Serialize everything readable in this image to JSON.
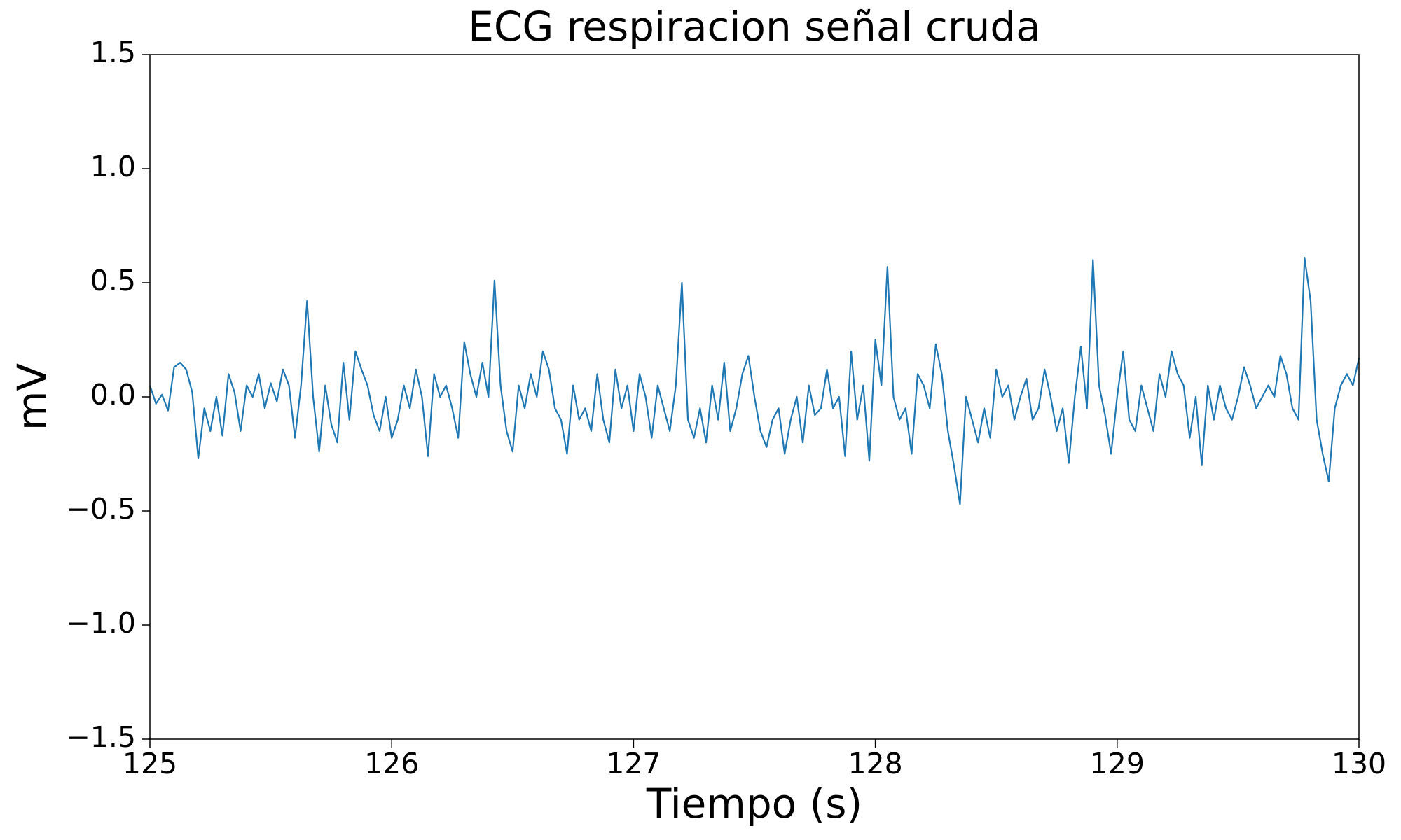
{
  "chart_data": {
    "type": "line",
    "title": "ECG respiracion señal cruda",
    "xlabel": "Tiempo (s)",
    "ylabel": "mV",
    "color": "#1f77b4",
    "xlim": [
      125,
      130
    ],
    "xticks": [
      125,
      126,
      127,
      128,
      129,
      130
    ],
    "ylim": [
      -1.5,
      1.5
    ],
    "yticks": [
      {
        "value": -1.5,
        "label": "−1.5"
      },
      {
        "value": -1,
        "label": "−1.0"
      },
      {
        "value": -0.5,
        "label": "−0.5"
      },
      {
        "value": 0,
        "label": "0.0"
      },
      0.5,
      {
        "value": 1,
        "label": "1.0"
      },
      1.5
    ],
    "x": [
      125,
      125.025,
      125.05,
      125.075,
      125.1,
      125.125,
      125.15,
      125.175,
      125.2,
      125.225,
      125.25,
      125.275,
      125.3,
      125.325,
      125.35,
      125.375,
      125.4,
      125.425,
      125.45,
      125.475,
      125.5,
      125.525,
      125.55,
      125.575,
      125.6,
      125.625,
      125.65,
      125.675,
      125.7,
      125.725,
      125.75,
      125.775,
      125.8,
      125.825,
      125.85,
      125.875,
      125.9,
      125.925,
      125.95,
      125.975,
      126,
      126.025,
      126.05,
      126.075,
      126.1,
      126.125,
      126.15,
      126.175,
      126.2,
      126.225,
      126.25,
      126.275,
      126.3,
      126.325,
      126.35,
      126.375,
      126.4,
      126.425,
      126.45,
      126.475,
      126.5,
      126.525,
      126.55,
      126.575,
      126.6,
      126.625,
      126.65,
      126.675,
      126.7,
      126.725,
      126.75,
      126.775,
      126.8,
      126.825,
      126.85,
      126.875,
      126.9,
      126.925,
      126.95,
      126.975,
      127,
      127.025,
      127.05,
      127.075,
      127.1,
      127.125,
      127.15,
      127.175,
      127.2,
      127.225,
      127.25,
      127.275,
      127.3,
      127.325,
      127.35,
      127.375,
      127.4,
      127.425,
      127.45,
      127.475,
      127.5,
      127.525,
      127.55,
      127.575,
      127.6,
      127.625,
      127.65,
      127.675,
      127.7,
      127.725,
      127.75,
      127.775,
      127.8,
      127.825,
      127.85,
      127.875,
      127.9,
      127.925,
      127.95,
      127.975,
      128,
      128.025,
      128.05,
      128.075,
      128.1,
      128.125,
      128.15,
      128.175,
      128.2,
      128.225,
      128.25,
      128.275,
      128.3,
      128.325,
      128.35,
      128.375,
      128.4,
      128.425,
      128.45,
      128.475,
      128.5,
      128.525,
      128.55,
      128.575,
      128.6,
      128.625,
      128.65,
      128.675,
      128.7,
      128.725,
      128.75,
      128.775,
      128.8,
      128.825,
      128.85,
      128.875,
      128.9,
      128.925,
      128.95,
      128.975,
      129,
      129.025,
      129.05,
      129.075,
      129.1,
      129.125,
      129.15,
      129.175,
      129.2,
      129.225,
      129.25,
      129.275,
      129.3,
      129.325,
      129.35,
      129.375,
      129.4,
      129.425,
      129.45,
      129.475,
      129.5,
      129.525,
      129.55,
      129.575,
      129.6,
      129.625,
      129.65,
      129.675,
      129.7,
      129.725,
      129.75,
      129.775,
      129.8,
      129.825,
      129.85,
      129.875,
      129.9,
      129.925,
      129.95,
      129.975,
      130
    ],
    "values": [
      0.05,
      -0.03,
      0.01,
      -0.06,
      0.13,
      0.15,
      0.12,
      0.02,
      -0.27,
      -0.05,
      -0.15,
      0.0,
      -0.17,
      0.1,
      0.02,
      -0.15,
      0.05,
      0.0,
      0.1,
      -0.05,
      0.06,
      -0.02,
      0.12,
      0.05,
      -0.18,
      0.05,
      0.42,
      0.0,
      -0.24,
      0.05,
      -0.12,
      -0.2,
      0.15,
      -0.1,
      0.2,
      0.12,
      0.05,
      -0.08,
      -0.15,
      0.0,
      -0.18,
      -0.1,
      0.05,
      -0.05,
      0.12,
      0.0,
      -0.26,
      0.1,
      0.0,
      0.05,
      -0.05,
      -0.18,
      0.24,
      0.1,
      0.0,
      0.15,
      0.0,
      0.51,
      0.05,
      -0.15,
      -0.24,
      0.05,
      -0.05,
      0.1,
      0.0,
      0.2,
      0.12,
      -0.05,
      -0.1,
      -0.25,
      0.05,
      -0.1,
      -0.05,
      -0.15,
      0.1,
      -0.1,
      -0.2,
      0.12,
      -0.05,
      0.05,
      -0.15,
      0.1,
      0.0,
      -0.18,
      0.05,
      -0.05,
      -0.15,
      0.05,
      0.5,
      -0.1,
      -0.18,
      -0.05,
      -0.2,
      0.05,
      -0.1,
      0.15,
      -0.15,
      -0.05,
      0.1,
      0.18,
      0.0,
      -0.15,
      -0.22,
      -0.1,
      -0.05,
      -0.25,
      -0.1,
      0.0,
      -0.2,
      0.05,
      -0.08,
      -0.05,
      0.12,
      -0.05,
      0.0,
      -0.26,
      0.2,
      -0.1,
      0.05,
      -0.28,
      0.25,
      0.05,
      0.57,
      0.0,
      -0.1,
      -0.05,
      -0.25,
      0.1,
      0.05,
      -0.05,
      0.23,
      0.1,
      -0.15,
      -0.3,
      -0.47,
      0.0,
      -0.1,
      -0.2,
      -0.05,
      -0.18,
      0.12,
      0.0,
      0.05,
      -0.1,
      0.0,
      0.08,
      -0.1,
      -0.05,
      0.12,
      0.0,
      -0.15,
      -0.05,
      -0.29,
      0.0,
      0.22,
      -0.05,
      0.6,
      0.05,
      -0.08,
      -0.25,
      0.0,
      0.2,
      -0.1,
      -0.15,
      0.05,
      -0.05,
      -0.15,
      0.1,
      0.0,
      0.2,
      0.1,
      0.05,
      -0.18,
      0.0,
      -0.3,
      0.05,
      -0.1,
      0.05,
      -0.05,
      -0.1,
      0.0,
      0.13,
      0.05,
      -0.05,
      0.0,
      0.05,
      0.0,
      0.18,
      0.1,
      -0.05,
      -0.1,
      0.61,
      0.42,
      -0.1,
      -0.25,
      -0.37,
      -0.05,
      0.05,
      0.1,
      0.05,
      0.17
    ]
  }
}
